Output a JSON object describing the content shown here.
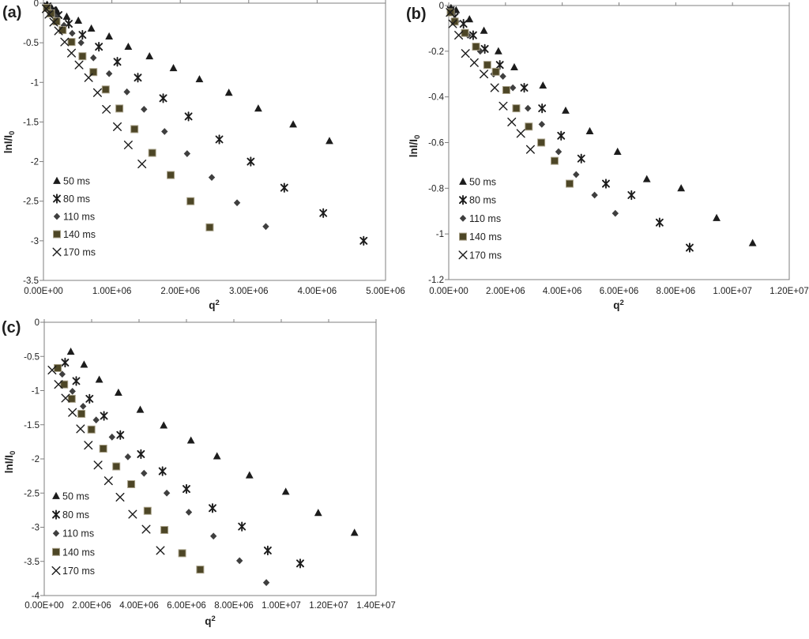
{
  "figure_title": "",
  "colors": {
    "marker_black": "#1c1c1c",
    "diamond_gray": "#3f3f3f",
    "square_fill": "#4d4626",
    "square_stroke": "#a8a189",
    "axis_line": "#7f7f7f",
    "text": "#1f1f1f"
  },
  "chart_data": [
    {
      "type": "scatter",
      "panel_label": "(a)",
      "xlabel_main": "q",
      "xlabel_sup": "2",
      "ylabel_main": "lnI/I",
      "ylabel_sub": "0",
      "x_unit_multiplier": 1000000,
      "xlim_e6": [
        0,
        5
      ],
      "x_tick_step_e6": 1,
      "ylim": [
        -3.5,
        0
      ],
      "y_tick_step": 0.5,
      "x_tick_labels": [
        "0.00E+00",
        "1.00E+06",
        "2.00E+06",
        "3.00E+06",
        "4.00E+06",
        "5.00E+06"
      ],
      "y_tick_labels": [
        "0",
        "-0.5",
        "-1",
        "-1.5",
        "-2",
        "-2.5",
        "-3",
        "-3.5"
      ],
      "legend_position": "inside-left",
      "series": [
        {
          "name": "50 ms",
          "marker": "triangle",
          "points": [
            [
              0.05,
              -0.02
            ],
            [
              0.12,
              -0.06
            ],
            [
              0.19,
              -0.09
            ],
            [
              0.34,
              -0.17
            ],
            [
              0.51,
              -0.22
            ],
            [
              0.7,
              -0.32
            ],
            [
              0.96,
              -0.42
            ],
            [
              1.24,
              -0.55
            ],
            [
              1.55,
              -0.67
            ],
            [
              1.9,
              -0.82
            ],
            [
              2.28,
              -0.96
            ],
            [
              2.71,
              -1.13
            ],
            [
              3.14,
              -1.33
            ],
            [
              3.65,
              -1.53
            ],
            [
              4.18,
              -1.74
            ]
          ]
        },
        {
          "name": "80 ms",
          "marker": "star",
          "points": [
            [
              0.06,
              -0.04
            ],
            [
              0.13,
              -0.09
            ],
            [
              0.22,
              -0.15
            ],
            [
              0.37,
              -0.26
            ],
            [
              0.57,
              -0.4
            ],
            [
              0.81,
              -0.55
            ],
            [
              1.08,
              -0.74
            ],
            [
              1.38,
              -0.94
            ],
            [
              1.75,
              -1.2
            ],
            [
              2.12,
              -1.43
            ],
            [
              2.57,
              -1.72
            ],
            [
              3.03,
              -2.0
            ],
            [
              3.52,
              -2.33
            ],
            [
              4.09,
              -2.65
            ],
            [
              4.68,
              -3.0
            ]
          ]
        },
        {
          "name": "110 ms",
          "marker": "diamond",
          "points": [
            [
              0.05,
              -0.05
            ],
            [
              0.11,
              -0.1
            ],
            [
              0.18,
              -0.17
            ],
            [
              0.3,
              -0.28
            ],
            [
              0.42,
              -0.38
            ],
            [
              0.55,
              -0.5
            ],
            [
              0.73,
              -0.69
            ],
            [
              0.96,
              -0.89
            ],
            [
              1.22,
              -1.12
            ],
            [
              1.47,
              -1.34
            ],
            [
              1.77,
              -1.62
            ],
            [
              2.1,
              -1.9
            ],
            [
              2.46,
              -2.2
            ],
            [
              2.83,
              -2.52
            ],
            [
              3.25,
              -2.82
            ]
          ]
        },
        {
          "name": "140 ms",
          "marker": "square",
          "points": [
            [
              0.05,
              -0.06
            ],
            [
              0.11,
              -0.13
            ],
            [
              0.19,
              -0.23
            ],
            [
              0.28,
              -0.34
            ],
            [
              0.41,
              -0.49
            ],
            [
              0.57,
              -0.67
            ],
            [
              0.73,
              -0.87
            ],
            [
              0.91,
              -1.09
            ],
            [
              1.11,
              -1.33
            ],
            [
              1.33,
              -1.59
            ],
            [
              1.59,
              -1.89
            ],
            [
              1.86,
              -2.17
            ],
            [
              2.15,
              -2.5
            ],
            [
              2.43,
              -2.83
            ]
          ]
        },
        {
          "name": "170 ms",
          "marker": "xmark",
          "points": [
            [
              0.04,
              -0.07
            ],
            [
              0.08,
              -0.14
            ],
            [
              0.15,
              -0.24
            ],
            [
              0.22,
              -0.35
            ],
            [
              0.31,
              -0.49
            ],
            [
              0.41,
              -0.63
            ],
            [
              0.52,
              -0.78
            ],
            [
              0.66,
              -0.94
            ],
            [
              0.79,
              -1.13
            ],
            [
              0.92,
              -1.34
            ],
            [
              1.08,
              -1.56
            ],
            [
              1.24,
              -1.79
            ],
            [
              1.44,
              -2.03
            ]
          ]
        }
      ]
    },
    {
      "type": "scatter",
      "panel_label": "(b)",
      "xlabel_main": "q",
      "xlabel_sup": "2",
      "ylabel_main": "lnI/I",
      "ylabel_sub": "0",
      "x_unit_multiplier": 1000000,
      "xlim_e6": [
        0,
        12
      ],
      "x_tick_step_e6": 2,
      "ylim": [
        -1.2,
        0
      ],
      "y_tick_step": 0.2,
      "x_tick_labels": [
        "0.00E+00",
        "2.00E+06",
        "4.00E+06",
        "6.00E+06",
        "8.00E+06",
        "1.00E+07",
        "1.20E+07"
      ],
      "y_tick_labels": [
        "0",
        "-0.2",
        "-0.4",
        "-0.6",
        "-0.8",
        "-1",
        "-1.2"
      ],
      "legend_position": "inside-left",
      "series": [
        {
          "name": "50 ms",
          "marker": "triangle",
          "points": [
            [
              0.08,
              -0.01
            ],
            [
              0.26,
              -0.02
            ],
            [
              0.73,
              -0.06
            ],
            [
              1.24,
              -0.11
            ],
            [
              1.75,
              -0.2
            ],
            [
              2.31,
              -0.27
            ],
            [
              3.32,
              -0.35
            ],
            [
              4.12,
              -0.46
            ],
            [
              4.97,
              -0.55
            ],
            [
              5.95,
              -0.64
            ],
            [
              6.98,
              -0.76
            ],
            [
              8.19,
              -0.8
            ],
            [
              9.44,
              -0.93
            ],
            [
              10.71,
              -1.04
            ]
          ]
        },
        {
          "name": "80 ms",
          "marker": "star",
          "points": [
            [
              0.07,
              -0.02
            ],
            [
              0.21,
              -0.05
            ],
            [
              0.52,
              -0.08
            ],
            [
              0.86,
              -0.13
            ],
            [
              1.27,
              -0.19
            ],
            [
              1.8,
              -0.26
            ],
            [
              2.66,
              -0.36
            ],
            [
              3.29,
              -0.45
            ],
            [
              3.96,
              -0.57
            ],
            [
              4.67,
              -0.67
            ],
            [
              5.54,
              -0.78
            ],
            [
              6.44,
              -0.83
            ],
            [
              7.43,
              -0.95
            ],
            [
              8.49,
              -1.06
            ]
          ]
        },
        {
          "name": "110 ms",
          "marker": "diamond",
          "points": [
            [
              0.08,
              -0.03
            ],
            [
              0.28,
              -0.07
            ],
            [
              0.68,
              -0.13
            ],
            [
              1.11,
              -0.2
            ],
            [
              1.58,
              -0.3
            ],
            [
              1.91,
              -0.31
            ],
            [
              2.26,
              -0.36
            ],
            [
              2.79,
              -0.45
            ],
            [
              3.28,
              -0.52
            ],
            [
              3.87,
              -0.64
            ],
            [
              4.49,
              -0.74
            ],
            [
              5.14,
              -0.83
            ],
            [
              5.87,
              -0.91
            ]
          ]
        },
        {
          "name": "140 ms",
          "marker": "square",
          "points": [
            [
              0.07,
              -0.03
            ],
            [
              0.21,
              -0.07
            ],
            [
              0.57,
              -0.12
            ],
            [
              0.96,
              -0.18
            ],
            [
              1.36,
              -0.26
            ],
            [
              1.66,
              -0.29
            ],
            [
              2.03,
              -0.37
            ],
            [
              2.38,
              -0.45
            ],
            [
              2.82,
              -0.53
            ],
            [
              3.26,
              -0.6
            ],
            [
              3.73,
              -0.68
            ],
            [
              4.26,
              -0.78
            ]
          ]
        },
        {
          "name": "170 ms",
          "marker": "xmark",
          "points": [
            [
              0.05,
              -0.03
            ],
            [
              0.14,
              -0.08
            ],
            [
              0.35,
              -0.13
            ],
            [
              0.59,
              -0.21
            ],
            [
              0.9,
              -0.25
            ],
            [
              1.24,
              -0.3
            ],
            [
              1.62,
              -0.36
            ],
            [
              1.92,
              -0.44
            ],
            [
              2.22,
              -0.51
            ],
            [
              2.54,
              -0.56
            ],
            [
              2.88,
              -0.63
            ]
          ]
        }
      ]
    },
    {
      "type": "scatter",
      "panel_label": "(c)",
      "xlabel_main": "q",
      "xlabel_sup": "2",
      "ylabel_main": "lnI/I",
      "ylabel_sub": "0",
      "x_unit_multiplier": 1000000,
      "xlim_e6": [
        0,
        14
      ],
      "x_tick_step_e6": 2,
      "ylim": [
        -4,
        0
      ],
      "y_tick_step": 0.5,
      "x_tick_labels": [
        "0.00E+00",
        "2.00E+06",
        "4.00E+06",
        "6.00E+06",
        "8.00E+06",
        "1.00E+07",
        "1.20E+07",
        "1.40E+07"
      ],
      "y_tick_labels": [
        "0",
        "-0.5",
        "-1",
        "-1.5",
        "-2",
        "-2.5",
        "-3",
        "-3.5",
        "-4"
      ],
      "legend_position": "inside-left",
      "series": [
        {
          "name": "50 ms",
          "marker": "triangle",
          "points": [
            [
              1.12,
              -0.43
            ],
            [
              1.68,
              -0.62
            ],
            [
              2.32,
              -0.84
            ],
            [
              3.13,
              -1.03
            ],
            [
              4.05,
              -1.28
            ],
            [
              5.04,
              -1.51
            ],
            [
              6.19,
              -1.73
            ],
            [
              7.29,
              -1.96
            ],
            [
              8.66,
              -2.24
            ],
            [
              10.19,
              -2.48
            ],
            [
              11.56,
              -2.79
            ],
            [
              13.09,
              -3.08
            ]
          ]
        },
        {
          "name": "80 ms",
          "marker": "star",
          "points": [
            [
              0.88,
              -0.59
            ],
            [
              1.35,
              -0.86
            ],
            [
              1.91,
              -1.12
            ],
            [
              2.52,
              -1.37
            ],
            [
              3.21,
              -1.65
            ],
            [
              4.08,
              -1.93
            ],
            [
              4.99,
              -2.18
            ],
            [
              6.0,
              -2.44
            ],
            [
              7.1,
              -2.72
            ],
            [
              8.34,
              -2.99
            ],
            [
              9.43,
              -3.34
            ],
            [
              10.8,
              -3.53
            ]
          ]
        },
        {
          "name": "110 ms",
          "marker": "diamond",
          "points": [
            [
              0.76,
              -0.76
            ],
            [
              1.19,
              -1.01
            ],
            [
              1.64,
              -1.23
            ],
            [
              2.19,
              -1.43
            ],
            [
              2.86,
              -1.68
            ],
            [
              3.53,
              -1.97
            ],
            [
              4.21,
              -2.21
            ],
            [
              5.17,
              -2.5
            ],
            [
              6.1,
              -2.78
            ],
            [
              7.14,
              -3.13
            ],
            [
              8.24,
              -3.49
            ],
            [
              9.37,
              -3.81
            ]
          ]
        },
        {
          "name": "140 ms",
          "marker": "square",
          "points": [
            [
              0.57,
              -0.67
            ],
            [
              0.84,
              -0.91
            ],
            [
              1.16,
              -1.12
            ],
            [
              1.57,
              -1.34
            ],
            [
              1.99,
              -1.57
            ],
            [
              2.49,
              -1.85
            ],
            [
              3.04,
              -2.11
            ],
            [
              3.67,
              -2.37
            ],
            [
              4.36,
              -2.76
            ],
            [
              5.07,
              -3.04
            ],
            [
              5.82,
              -3.38
            ],
            [
              6.58,
              -3.62
            ]
          ]
        },
        {
          "name": "170 ms",
          "marker": "xmark",
          "points": [
            [
              0.33,
              -0.7
            ],
            [
              0.6,
              -0.91
            ],
            [
              0.9,
              -1.11
            ],
            [
              1.19,
              -1.32
            ],
            [
              1.53,
              -1.56
            ],
            [
              1.86,
              -1.8
            ],
            [
              2.27,
              -2.09
            ],
            [
              2.71,
              -2.32
            ],
            [
              3.2,
              -2.56
            ],
            [
              3.73,
              -2.81
            ],
            [
              4.3,
              -3.03
            ],
            [
              4.9,
              -3.34
            ]
          ]
        }
      ]
    }
  ]
}
